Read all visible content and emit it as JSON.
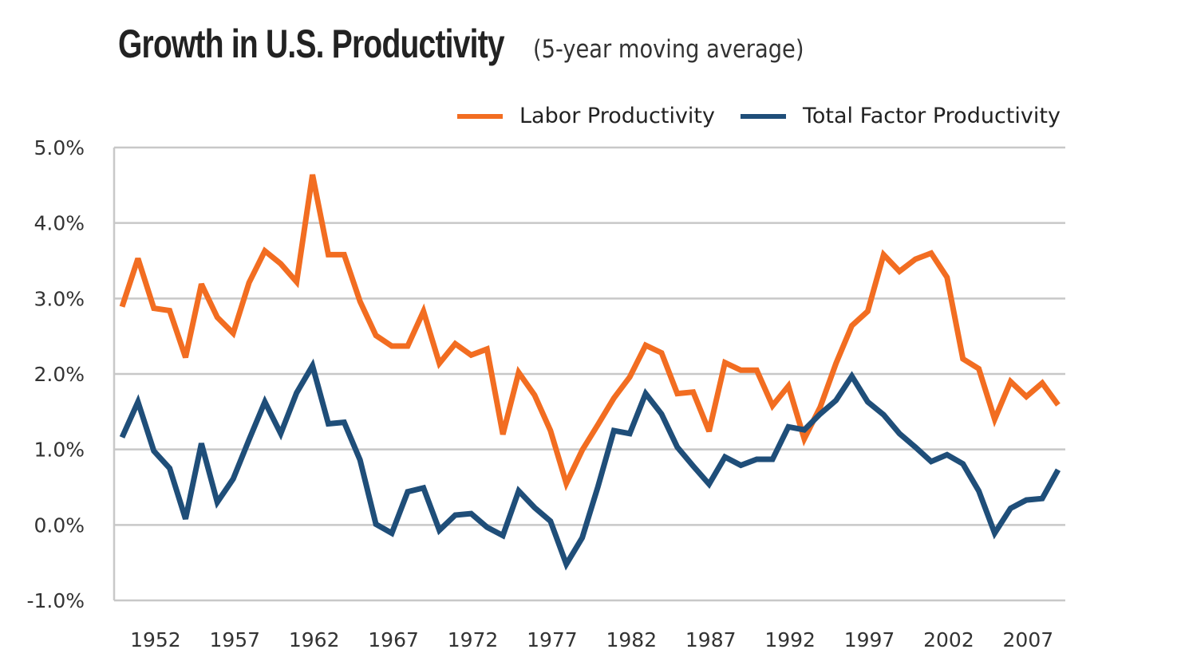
{
  "chart_data": {
    "type": "line",
    "title": "Growth in U.S. Productivity",
    "subtitle": "(5-year moving average)",
    "xlabel": "",
    "ylabel": "",
    "ylim": [
      -1.0,
      5.0
    ],
    "xlim": [
      1951,
      2010
    ],
    "yticks": [
      -1.0,
      0.0,
      1.0,
      2.0,
      3.0,
      4.0,
      5.0
    ],
    "ytick_labels": [
      "-1.0%",
      "0.0%",
      "1.0%",
      "2.0%",
      "3.0%",
      "4.0%",
      "5.0%"
    ],
    "xticks": [
      1952,
      1957,
      1962,
      1967,
      1972,
      1977,
      1982,
      1987,
      1992,
      1997,
      2002,
      2007
    ],
    "xtick_labels": [
      "1952",
      "1957",
      "1962",
      "1967",
      "1972",
      "1977",
      "1982",
      "1987",
      "1992",
      "1997",
      "2002",
      "2007"
    ],
    "grid": "horizontal",
    "legend_position": "top-right",
    "x_start": 1951,
    "series": [
      {
        "name": "Labor Productivity",
        "color": "#f26d21",
        "values": [
          2.89,
          3.53,
          2.87,
          2.84,
          2.22,
          3.19,
          2.75,
          2.54,
          3.21,
          3.63,
          3.46,
          3.22,
          4.64,
          3.58,
          3.58,
          2.96,
          2.51,
          2.37,
          2.37,
          2.83,
          2.14,
          2.4,
          2.25,
          2.33,
          1.2,
          2.02,
          1.72,
          1.25,
          0.55,
          0.99,
          1.33,
          1.68,
          1.96,
          2.38,
          2.28,
          1.74,
          1.76,
          1.24,
          2.15,
          2.05,
          2.05,
          1.58,
          1.84,
          1.14,
          1.56,
          2.14,
          2.64,
          2.83,
          3.58,
          3.36,
          3.52,
          3.6,
          3.28,
          2.2,
          2.07,
          1.4,
          1.9,
          1.7,
          1.88,
          1.59
        ]
      },
      {
        "name": "Total Factor Productivity",
        "color": "#1f4e79",
        "values": [
          1.16,
          1.63,
          0.98,
          0.75,
          0.08,
          1.08,
          0.3,
          0.61,
          1.13,
          1.63,
          1.21,
          1.75,
          2.11,
          1.34,
          1.36,
          0.86,
          0.01,
          -0.11,
          0.44,
          0.49,
          -0.07,
          0.13,
          0.15,
          -0.03,
          -0.14,
          0.45,
          0.23,
          0.05,
          -0.52,
          -0.17,
          0.51,
          1.25,
          1.21,
          1.74,
          1.47,
          1.03,
          0.78,
          0.54,
          0.9,
          0.79,
          0.87,
          0.87,
          1.3,
          1.26,
          1.47,
          1.65,
          1.97,
          1.63,
          1.46,
          1.21,
          1.03,
          0.84,
          0.93,
          0.81,
          0.45,
          -0.11,
          0.22,
          0.33,
          0.35,
          0.73
        ]
      }
    ],
    "grid_color": "#c8c8c8"
  }
}
